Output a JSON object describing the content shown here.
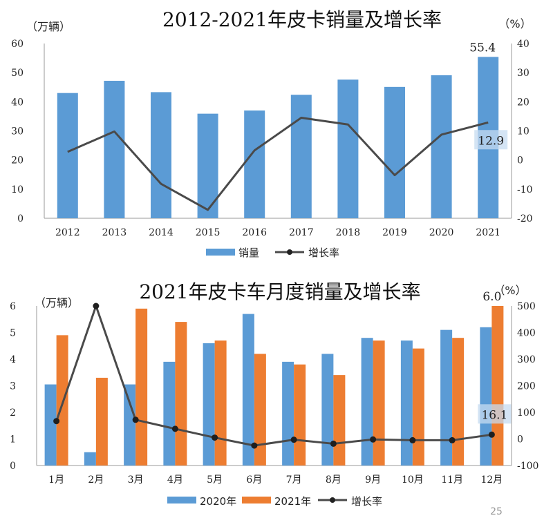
{
  "colors": {
    "bar_blue": "#5b9bd5",
    "bar_orange": "#ed7d31",
    "line": "#4a4a4a",
    "label_box": "#c5dbf0"
  },
  "page_number": "25",
  "chart_data": [
    {
      "type": "bar",
      "title": "2012-2021年皮卡销量及增长率",
      "y_unit": "（万辆）",
      "y2_unit": "（%）",
      "categories": [
        "2012",
        "2013",
        "2014",
        "2015",
        "2016",
        "2017",
        "2018",
        "2019",
        "2020",
        "2021"
      ],
      "ylim": [
        0,
        60
      ],
      "yticks": [
        "0",
        "10",
        "20",
        "30",
        "40",
        "50",
        "60"
      ],
      "y2lim": [
        -20,
        40
      ],
      "y2ticks": [
        "-20",
        "-10",
        "0",
        "10",
        "20",
        "30",
        "40"
      ],
      "series": [
        {
          "name": "销量",
          "kind": "bar",
          "axis": "left",
          "values": [
            43.0,
            47.2,
            43.3,
            35.9,
            37.0,
            42.4,
            47.6,
            45.1,
            49.1,
            55.4
          ]
        },
        {
          "name": "增长率",
          "kind": "line",
          "axis": "right",
          "values": [
            2.8,
            9.8,
            -8.2,
            -17.1,
            3.3,
            14.5,
            12.2,
            -5.2,
            8.7,
            12.9
          ]
        }
      ],
      "annotations": [
        {
          "text": "55.4",
          "series": 0,
          "index": 9
        },
        {
          "text": "12.9",
          "series": 1,
          "index": 9
        }
      ]
    },
    {
      "type": "bar",
      "title": "2021年皮卡车月度销量及增长率",
      "y_unit": "（万辆）",
      "y2_unit": "（%）",
      "categories": [
        "1月",
        "2月",
        "3月",
        "4月",
        "5月",
        "6月",
        "7月",
        "8月",
        "9月",
        "10月",
        "11月",
        "12月"
      ],
      "ylim": [
        0,
        6
      ],
      "yticks": [
        "0",
        "1",
        "2",
        "3",
        "4",
        "5",
        "6"
      ],
      "y2lim": [
        -100,
        500
      ],
      "y2ticks": [
        "-100",
        "0",
        "100",
        "200",
        "300",
        "400",
        "500"
      ],
      "series": [
        {
          "name": "2020年",
          "kind": "bar",
          "axis": "left",
          "values": [
            3.05,
            0.5,
            3.05,
            3.9,
            4.6,
            5.7,
            3.9,
            4.2,
            4.8,
            4.7,
            5.1,
            5.2
          ]
        },
        {
          "name": "2021年",
          "kind": "bar",
          "axis": "left",
          "values": [
            4.9,
            3.3,
            5.9,
            5.4,
            4.7,
            4.2,
            3.8,
            3.4,
            4.7,
            4.4,
            4.8,
            6.0
          ]
        },
        {
          "name": "增长率",
          "kind": "line",
          "axis": "right",
          "values": [
            67,
            500,
            72,
            38,
            5,
            -25,
            -3,
            -18,
            -2,
            -5,
            -5,
            16.1
          ]
        }
      ],
      "annotations": [
        {
          "text": "6.0",
          "series": 1,
          "index": 11
        },
        {
          "text": "16.1",
          "series": 2,
          "index": 11
        }
      ]
    }
  ]
}
